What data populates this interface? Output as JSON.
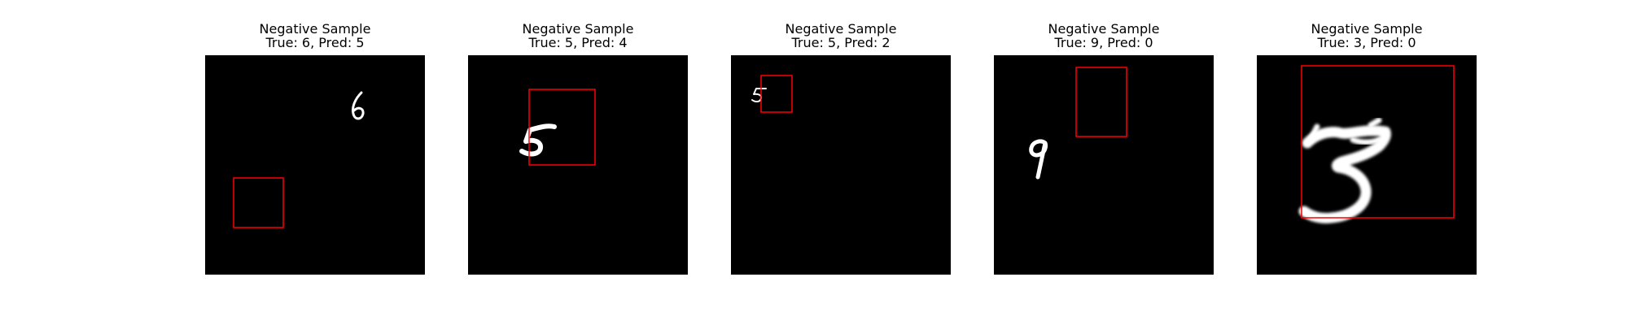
{
  "colors": {
    "background": "#ffffff",
    "image_background": "#000000",
    "digit": "#ffffff",
    "prediction_box": "#ff0000"
  },
  "panels": [
    {
      "heading": "Negative Sample",
      "subheading": "True: 6, Pred: 5",
      "true_label": 6,
      "predicted_label": 5,
      "digit_glyph": "6"
    },
    {
      "heading": "Negative Sample",
      "subheading": "True: 5, Pred: 4",
      "true_label": 5,
      "predicted_label": 4,
      "digit_glyph": "5"
    },
    {
      "heading": "Negative Sample",
      "subheading": "True: 5, Pred: 2",
      "true_label": 5,
      "predicted_label": 2,
      "digit_glyph": "5"
    },
    {
      "heading": "Negative Sample",
      "subheading": "True: 9, Pred: 0",
      "true_label": 9,
      "predicted_label": 0,
      "digit_glyph": "9"
    },
    {
      "heading": "Negative Sample",
      "subheading": "True: 3, Pred: 0",
      "true_label": 3,
      "predicted_label": 0,
      "digit_glyph": "3"
    }
  ]
}
